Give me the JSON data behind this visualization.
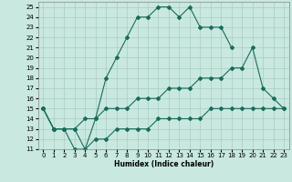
{
  "xlabel": "Humidex (Indice chaleur)",
  "bg_color": "#c8e8e0",
  "grid_color": "#aaccc4",
  "line_color": "#1a6b5a",
  "xlim": [
    -0.5,
    23.5
  ],
  "ylim": [
    11,
    25.5
  ],
  "yticks": [
    11,
    12,
    13,
    14,
    15,
    16,
    17,
    18,
    19,
    20,
    21,
    22,
    23,
    24,
    25
  ],
  "xticks": [
    0,
    1,
    2,
    3,
    4,
    5,
    6,
    7,
    8,
    9,
    10,
    11,
    12,
    13,
    14,
    15,
    16,
    17,
    18,
    19,
    20,
    21,
    22,
    23
  ],
  "lines": [
    {
      "x": [
        0,
        1,
        2,
        3,
        4,
        5,
        6,
        7,
        8,
        9,
        10,
        11,
        12,
        13,
        14,
        15,
        16,
        17,
        18
      ],
      "y": [
        15,
        13,
        13,
        11,
        11,
        14,
        18,
        20,
        22,
        24,
        24,
        25,
        25,
        24,
        25,
        23,
        23,
        23,
        21
      ]
    },
    {
      "x": [
        0,
        1,
        2,
        3,
        4,
        5,
        6,
        7,
        8,
        9,
        10,
        11,
        12,
        13,
        14,
        15,
        16,
        17,
        18,
        19,
        20,
        21,
        22,
        23
      ],
      "y": [
        15,
        13,
        13,
        13,
        14,
        14,
        15,
        15,
        15,
        16,
        16,
        16,
        17,
        17,
        17,
        18,
        18,
        18,
        19,
        19,
        21,
        17,
        16,
        15
      ]
    },
    {
      "x": [
        0,
        1,
        2,
        3,
        4,
        5,
        6,
        7,
        8,
        9,
        10,
        11,
        12,
        13,
        14,
        15,
        16,
        17,
        18,
        19,
        20,
        21,
        22,
        23
      ],
      "y": [
        15,
        13,
        13,
        13,
        11,
        12,
        12,
        13,
        13,
        13,
        13,
        14,
        14,
        14,
        14,
        14,
        15,
        15,
        15,
        15,
        15,
        15,
        15,
        15
      ]
    }
  ]
}
